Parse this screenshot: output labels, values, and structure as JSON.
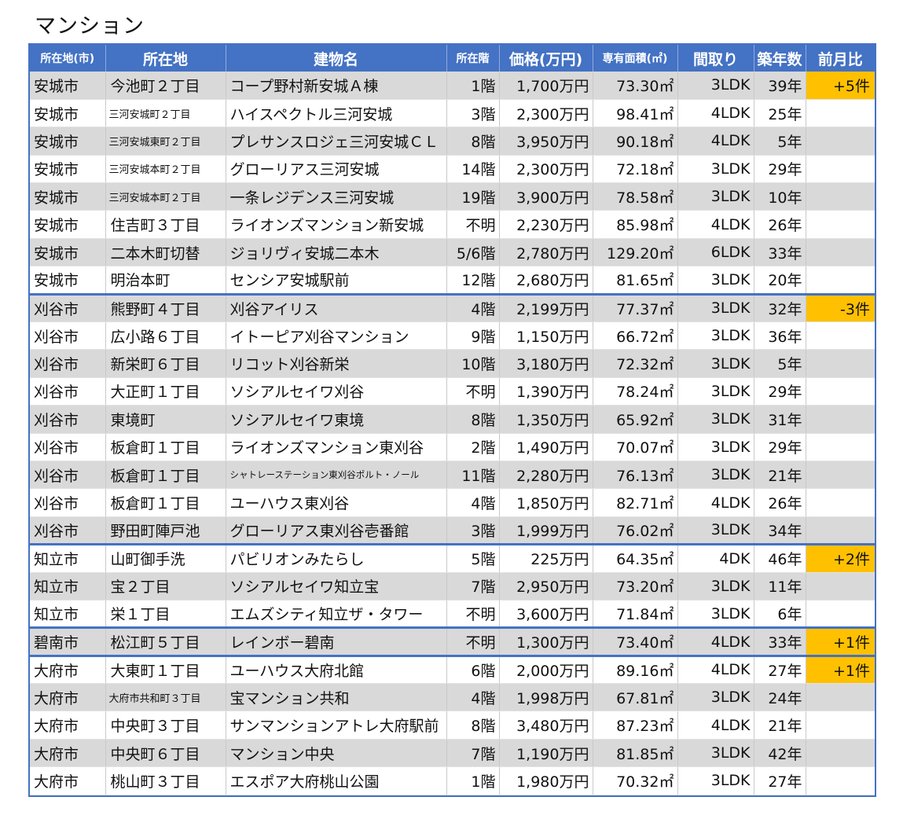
{
  "title": "マンション",
  "colors": {
    "header_bg": "#4472c4",
    "alt_row": "#d9d9d9",
    "highlight": "#ffc000"
  },
  "headers": [
    "所在地(市)",
    "所在地",
    "建物名",
    "所在階",
    "価格(万円)",
    "専有面積(㎡)",
    "間取り",
    "築年数",
    "前月比"
  ],
  "rows": [
    {
      "city": "安城市",
      "address": "今池町２丁目",
      "name": "コープ野村新安城Ａ棟",
      "floor": "1階",
      "price": "1,700万円",
      "area": "73.30㎡",
      "layout": "3LDK",
      "age": "39年",
      "change": "+5件"
    },
    {
      "city": "安城市",
      "address": "三河安城町２丁目",
      "name": "ハイスペクトル三河安城",
      "floor": "3階",
      "price": "2,300万円",
      "area": "98.41㎡",
      "layout": "4LDK",
      "age": "25年",
      "change": ""
    },
    {
      "city": "安城市",
      "address": "三河安城東町２丁目",
      "name": "プレサンスロジェ三河安城ＣＬ",
      "floor": "8階",
      "price": "3,950万円",
      "area": "90.18㎡",
      "layout": "4LDK",
      "age": "5年",
      "change": ""
    },
    {
      "city": "安城市",
      "address": "三河安城本町２丁目",
      "name": "グローリアス三河安城",
      "floor": "14階",
      "price": "2,300万円",
      "area": "72.18㎡",
      "layout": "3LDK",
      "age": "29年",
      "change": ""
    },
    {
      "city": "安城市",
      "address": "三河安城本町２丁目",
      "name": "一条レジデンス三河安城",
      "floor": "19階",
      "price": "3,900万円",
      "area": "78.58㎡",
      "layout": "3LDK",
      "age": "10年",
      "change": ""
    },
    {
      "city": "安城市",
      "address": "住吉町３丁目",
      "name": "ライオンズマンション新安城",
      "floor": "不明",
      "price": "2,230万円",
      "area": "85.98㎡",
      "layout": "4LDK",
      "age": "26年",
      "change": ""
    },
    {
      "city": "安城市",
      "address": "二本木町切替",
      "name": "ジョリヴィ安城二本木",
      "floor": "5/6階",
      "price": "2,780万円",
      "area": "129.20㎡",
      "layout": "6LDK",
      "age": "33年",
      "change": ""
    },
    {
      "city": "安城市",
      "address": "明治本町",
      "name": "センシア安城駅前",
      "floor": "12階",
      "price": "2,680万円",
      "area": "81.65㎡",
      "layout": "3LDK",
      "age": "20年",
      "change": ""
    },
    {
      "city": "刈谷市",
      "address": "熊野町４丁目",
      "name": "刈谷アイリス",
      "floor": "4階",
      "price": "2,199万円",
      "area": "77.37㎡",
      "layout": "3LDK",
      "age": "32年",
      "change": "-3件"
    },
    {
      "city": "刈谷市",
      "address": "広小路６丁目",
      "name": "イトーピア刈谷マンション",
      "floor": "9階",
      "price": "1,150万円",
      "area": "66.72㎡",
      "layout": "3LDK",
      "age": "36年",
      "change": ""
    },
    {
      "city": "刈谷市",
      "address": "新栄町６丁目",
      "name": "リコット刈谷新栄",
      "floor": "10階",
      "price": "3,180万円",
      "area": "72.32㎡",
      "layout": "3LDK",
      "age": "5年",
      "change": ""
    },
    {
      "city": "刈谷市",
      "address": "大正町１丁目",
      "name": "ソシアルセイワ刈谷",
      "floor": "不明",
      "price": "1,390万円",
      "area": "78.24㎡",
      "layout": "3LDK",
      "age": "29年",
      "change": ""
    },
    {
      "city": "刈谷市",
      "address": "東境町",
      "name": "ソシアルセイワ東境",
      "floor": "8階",
      "price": "1,350万円",
      "area": "65.92㎡",
      "layout": "3LDK",
      "age": "31年",
      "change": ""
    },
    {
      "city": "刈谷市",
      "address": "板倉町１丁目",
      "name": "ライオンズマンション東刈谷",
      "floor": "2階",
      "price": "1,490万円",
      "area": "70.07㎡",
      "layout": "3LDK",
      "age": "29年",
      "change": ""
    },
    {
      "city": "刈谷市",
      "address": "板倉町１丁目",
      "name": "シャトレーステーション東刈谷ポルト・ノール",
      "floor": "11階",
      "price": "2,280万円",
      "area": "76.13㎡",
      "layout": "3LDK",
      "age": "21年",
      "change": ""
    },
    {
      "city": "刈谷市",
      "address": "板倉町１丁目",
      "name": "ユーハウス東刈谷",
      "floor": "4階",
      "price": "1,850万円",
      "area": "82.71㎡",
      "layout": "4LDK",
      "age": "26年",
      "change": ""
    },
    {
      "city": "刈谷市",
      "address": "野田町陣戸池",
      "name": "グローリアス東刈谷壱番館",
      "floor": "3階",
      "price": "1,999万円",
      "area": "76.02㎡",
      "layout": "3LDK",
      "age": "34年",
      "change": ""
    },
    {
      "city": "知立市",
      "address": "山町御手洗",
      "name": "パビリオンみたらし",
      "floor": "5階",
      "price": "225万円",
      "area": "64.35㎡",
      "layout": "4DK",
      "age": "46年",
      "change": "+2件"
    },
    {
      "city": "知立市",
      "address": "宝２丁目",
      "name": "ソシアルセイワ知立宝",
      "floor": "7階",
      "price": "2,950万円",
      "area": "73.20㎡",
      "layout": "3LDK",
      "age": "11年",
      "change": ""
    },
    {
      "city": "知立市",
      "address": "栄１丁目",
      "name": "エムズシティ知立ザ・タワー",
      "floor": "不明",
      "price": "3,600万円",
      "area": "71.84㎡",
      "layout": "3LDK",
      "age": "6年",
      "change": ""
    },
    {
      "city": "碧南市",
      "address": "松江町５丁目",
      "name": "レインボー碧南",
      "floor": "不明",
      "price": "1,300万円",
      "area": "73.40㎡",
      "layout": "4LDK",
      "age": "33年",
      "change": "+1件"
    },
    {
      "city": "大府市",
      "address": "大東町１丁目",
      "name": "ユーハウス大府北館",
      "floor": "6階",
      "price": "2,000万円",
      "area": "89.16㎡",
      "layout": "4LDK",
      "age": "27年",
      "change": "+1件"
    },
    {
      "city": "大府市",
      "address": "大府市共和町３丁目",
      "name": "宝マンション共和",
      "floor": "4階",
      "price": "1,998万円",
      "area": "67.81㎡",
      "layout": "3LDK",
      "age": "24年",
      "change": ""
    },
    {
      "city": "大府市",
      "address": "中央町３丁目",
      "name": "サンマンションアトレ大府駅前",
      "floor": "8階",
      "price": "3,480万円",
      "area": "87.23㎡",
      "layout": "4LDK",
      "age": "21年",
      "change": ""
    },
    {
      "city": "大府市",
      "address": "中央町６丁目",
      "name": "マンション中央",
      "floor": "7階",
      "price": "1,190万円",
      "area": "81.85㎡",
      "layout": "3LDK",
      "age": "42年",
      "change": ""
    },
    {
      "city": "大府市",
      "address": "桃山町３丁目",
      "name": "エスポア大府桃山公園",
      "floor": "1階",
      "price": "1,980万円",
      "area": "70.32㎡",
      "layout": "3LDK",
      "age": "27年",
      "change": ""
    }
  ]
}
